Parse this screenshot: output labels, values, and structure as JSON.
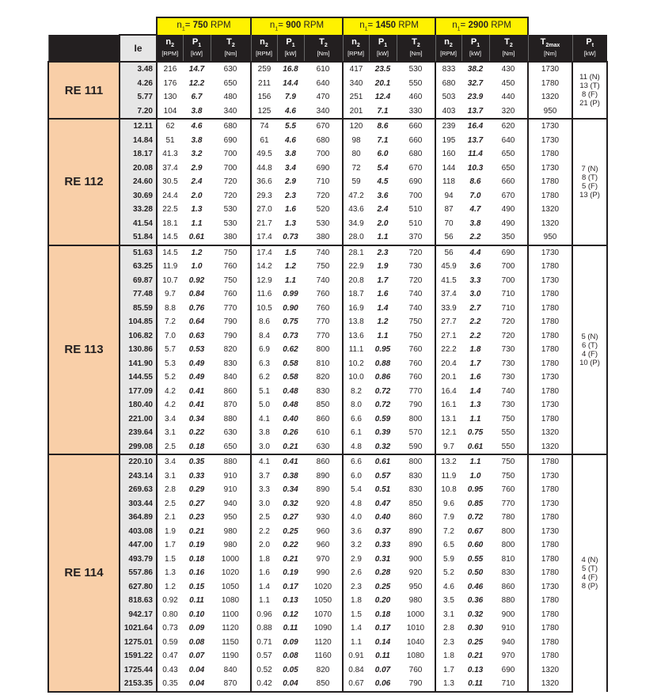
{
  "header": {
    "rpm_groups": [
      {
        "prefix": "n",
        "sub": "1",
        "eq": "= ",
        "value": "750",
        "unit": " RPM"
      },
      {
        "prefix": "n",
        "sub": "1",
        "eq": "= ",
        "value": "900",
        "unit": " RPM"
      },
      {
        "prefix": "n",
        "sub": "1",
        "eq": "= ",
        "value": "1450",
        "unit": " RPM"
      },
      {
        "prefix": "n",
        "sub": "1",
        "eq": "= ",
        "value": "2900",
        "unit": " RPM"
      }
    ],
    "ie_label": "Ie",
    "sub_columns": [
      {
        "symbol": "n",
        "sub": "2",
        "unit": "[RPM]"
      },
      {
        "symbol": "P",
        "sub": "1",
        "unit": "[kW]"
      },
      {
        "symbol": "T",
        "sub": "2",
        "unit": "[Nm]"
      }
    ],
    "t2max": {
      "symbol": "T",
      "sub": "2max",
      "unit": "[Nm]"
    },
    "pt": {
      "symbol": "P",
      "sub": "t",
      "unit": "[kW]"
    }
  },
  "colors": {
    "rpm_header": "#fff200",
    "column_header": "#231f20",
    "model_cell": "#f9cfa8",
    "ie_cell": "#e6e6e6"
  },
  "sections": [
    {
      "model": "RE 111",
      "pt": [
        "11 (N)",
        "13 (T)",
        "8 (F)",
        "21 (P)"
      ],
      "rows": [
        [
          "3.48",
          "216",
          "14.7",
          "630",
          "259",
          "16.8",
          "610",
          "417",
          "23.5",
          "530",
          "833",
          "38.2",
          "430",
          "1730"
        ],
        [
          "4.26",
          "176",
          "12.2",
          "650",
          "211",
          "14.4",
          "640",
          "340",
          "20.1",
          "550",
          "680",
          "32.7",
          "450",
          "1780"
        ],
        [
          "5.77",
          "130",
          "6.7",
          "480",
          "156",
          "7.9",
          "470",
          "251",
          "12.4",
          "460",
          "503",
          "23.9",
          "440",
          "1320"
        ],
        [
          "7.20",
          "104",
          "3.8",
          "340",
          "125",
          "4.6",
          "340",
          "201",
          "7.1",
          "330",
          "403",
          "13.7",
          "320",
          "950"
        ]
      ]
    },
    {
      "model": "RE 112",
      "pt": [
        "7 (N)",
        "8 (T)",
        "5 (F)",
        "13 (P)"
      ],
      "rows": [
        [
          "12.11",
          "62",
          "4.6",
          "680",
          "74",
          "5.5",
          "670",
          "120",
          "8.6",
          "660",
          "239",
          "16.4",
          "620",
          "1730"
        ],
        [
          "14.84",
          "51",
          "3.8",
          "690",
          "61",
          "4.6",
          "680",
          "98",
          "7.1",
          "660",
          "195",
          "13.7",
          "640",
          "1730"
        ],
        [
          "18.17",
          "41.3",
          "3.2",
          "700",
          "49.5",
          "3.8",
          "700",
          "80",
          "6.0",
          "680",
          "160",
          "11.4",
          "650",
          "1780"
        ],
        [
          "20.08",
          "37.4",
          "2.9",
          "700",
          "44.8",
          "3.4",
          "690",
          "72",
          "5.4",
          "670",
          "144",
          "10.3",
          "650",
          "1730"
        ],
        [
          "24.60",
          "30.5",
          "2.4",
          "720",
          "36.6",
          "2.9",
          "710",
          "59",
          "4.5",
          "690",
          "118",
          "8.6",
          "660",
          "1780"
        ],
        [
          "30.69",
          "24.4",
          "2.0",
          "720",
          "29.3",
          "2.3",
          "720",
          "47.2",
          "3.6",
          "700",
          "94",
          "7.0",
          "670",
          "1780"
        ],
        [
          "33.28",
          "22.5",
          "1.3",
          "530",
          "27.0",
          "1.6",
          "520",
          "43.6",
          "2.4",
          "510",
          "87",
          "4.7",
          "490",
          "1320"
        ],
        [
          "41.54",
          "18.1",
          "1.1",
          "530",
          "21.7",
          "1.3",
          "530",
          "34.9",
          "2.0",
          "510",
          "70",
          "3.8",
          "490",
          "1320"
        ],
        [
          "51.84",
          "14.5",
          "0.61",
          "380",
          "17.4",
          "0.73",
          "380",
          "28.0",
          "1.1",
          "370",
          "56",
          "2.2",
          "350",
          "950"
        ]
      ]
    },
    {
      "model": "RE 113",
      "pt": [
        "5 (N)",
        "6 (T)",
        "4 (F)",
        "10 (P)"
      ],
      "rows": [
        [
          "51.63",
          "14.5",
          "1.2",
          "750",
          "17.4",
          "1.5",
          "740",
          "28.1",
          "2.3",
          "720",
          "56",
          "4.4",
          "690",
          "1730"
        ],
        [
          "63.25",
          "11.9",
          "1.0",
          "760",
          "14.2",
          "1.2",
          "750",
          "22.9",
          "1.9",
          "730",
          "45.9",
          "3.6",
          "700",
          "1780"
        ],
        [
          "69.87",
          "10.7",
          "0.92",
          "750",
          "12.9",
          "1.1",
          "740",
          "20.8",
          "1.7",
          "720",
          "41.5",
          "3.3",
          "700",
          "1730"
        ],
        [
          "77.48",
          "9.7",
          "0.84",
          "760",
          "11.6",
          "0.99",
          "760",
          "18.7",
          "1.6",
          "740",
          "37.4",
          "3.0",
          "710",
          "1780"
        ],
        [
          "85.59",
          "8.8",
          "0.76",
          "770",
          "10.5",
          "0.90",
          "760",
          "16.9",
          "1.4",
          "740",
          "33.9",
          "2.7",
          "710",
          "1780"
        ],
        [
          "104.85",
          "7.2",
          "0.64",
          "790",
          "8.6",
          "0.75",
          "770",
          "13.8",
          "1.2",
          "750",
          "27.7",
          "2.2",
          "720",
          "1780"
        ],
        [
          "106.82",
          "7.0",
          "0.63",
          "790",
          "8.4",
          "0.73",
          "770",
          "13.6",
          "1.1",
          "750",
          "27.1",
          "2.2",
          "720",
          "1780"
        ],
        [
          "130.86",
          "5.7",
          "0.53",
          "820",
          "6.9",
          "0.62",
          "800",
          "11.1",
          "0.95",
          "760",
          "22.2",
          "1.8",
          "730",
          "1780"
        ],
        [
          "141.90",
          "5.3",
          "0.49",
          "830",
          "6.3",
          "0.58",
          "810",
          "10.2",
          "0.88",
          "760",
          "20.4",
          "1.7",
          "730",
          "1780"
        ],
        [
          "144.55",
          "5.2",
          "0.49",
          "840",
          "6.2",
          "0.58",
          "820",
          "10.0",
          "0.86",
          "760",
          "20.1",
          "1.6",
          "730",
          "1730"
        ],
        [
          "177.09",
          "4.2",
          "0.41",
          "860",
          "5.1",
          "0.48",
          "830",
          "8.2",
          "0.72",
          "770",
          "16.4",
          "1.4",
          "740",
          "1780"
        ],
        [
          "180.40",
          "4.2",
          "0.41",
          "870",
          "5.0",
          "0.48",
          "850",
          "8.0",
          "0.72",
          "790",
          "16.1",
          "1.3",
          "730",
          "1730"
        ],
        [
          "221.00",
          "3.4",
          "0.34",
          "880",
          "4.1",
          "0.40",
          "860",
          "6.6",
          "0.59",
          "800",
          "13.1",
          "1.1",
          "750",
          "1780"
        ],
        [
          "239.64",
          "3.1",
          "0.22",
          "630",
          "3.8",
          "0.26",
          "610",
          "6.1",
          "0.39",
          "570",
          "12.1",
          "0.75",
          "550",
          "1320"
        ],
        [
          "299.08",
          "2.5",
          "0.18",
          "650",
          "3.0",
          "0.21",
          "630",
          "4.8",
          "0.32",
          "590",
          "9.7",
          "0.61",
          "550",
          "1320"
        ]
      ]
    },
    {
      "model": "RE 114",
      "pt": [
        "4 (N)",
        "5 (T)",
        "4 (F)",
        "8 (P)"
      ],
      "rows": [
        [
          "220.10",
          "3.4",
          "0.35",
          "880",
          "4.1",
          "0.41",
          "860",
          "6.6",
          "0.61",
          "800",
          "13.2",
          "1.1",
          "750",
          "1780"
        ],
        [
          "243.14",
          "3.1",
          "0.33",
          "910",
          "3.7",
          "0.38",
          "890",
          "6.0",
          "0.57",
          "830",
          "11.9",
          "1.0",
          "750",
          "1730"
        ],
        [
          "269.63",
          "2.8",
          "0.29",
          "910",
          "3.3",
          "0.34",
          "890",
          "5.4",
          "0.51",
          "830",
          "10.8",
          "0.95",
          "760",
          "1780"
        ],
        [
          "303.44",
          "2.5",
          "0.27",
          "940",
          "3.0",
          "0.32",
          "920",
          "4.8",
          "0.47",
          "850",
          "9.6",
          "0.85",
          "770",
          "1730"
        ],
        [
          "364.89",
          "2.1",
          "0.23",
          "950",
          "2.5",
          "0.27",
          "930",
          "4.0",
          "0.40",
          "860",
          "7.9",
          "0.72",
          "780",
          "1780"
        ],
        [
          "403.08",
          "1.9",
          "0.21",
          "980",
          "2.2",
          "0.25",
          "960",
          "3.6",
          "0.37",
          "890",
          "7.2",
          "0.67",
          "800",
          "1730"
        ],
        [
          "447.00",
          "1.7",
          "0.19",
          "980",
          "2.0",
          "0.22",
          "960",
          "3.2",
          "0.33",
          "890",
          "6.5",
          "0.60",
          "800",
          "1780"
        ],
        [
          "493.79",
          "1.5",
          "0.18",
          "1000",
          "1.8",
          "0.21",
          "970",
          "2.9",
          "0.31",
          "900",
          "5.9",
          "0.55",
          "810",
          "1780"
        ],
        [
          "557.86",
          "1.3",
          "0.16",
          "1020",
          "1.6",
          "0.19",
          "990",
          "2.6",
          "0.28",
          "920",
          "5.2",
          "0.50",
          "830",
          "1780"
        ],
        [
          "627.80",
          "1.2",
          "0.15",
          "1050",
          "1.4",
          "0.17",
          "1020",
          "2.3",
          "0.25",
          "950",
          "4.6",
          "0.46",
          "860",
          "1730"
        ],
        [
          "818.63",
          "0.92",
          "0.11",
          "1080",
          "1.1",
          "0.13",
          "1050",
          "1.8",
          "0.20",
          "980",
          "3.5",
          "0.36",
          "880",
          "1780"
        ],
        [
          "942.17",
          "0.80",
          "0.10",
          "1100",
          "0.96",
          "0.12",
          "1070",
          "1.5",
          "0.18",
          "1000",
          "3.1",
          "0.32",
          "900",
          "1780"
        ],
        [
          "1021.64",
          "0.73",
          "0.09",
          "1120",
          "0.88",
          "0.11",
          "1090",
          "1.4",
          "0.17",
          "1010",
          "2.8",
          "0.30",
          "910",
          "1780"
        ],
        [
          "1275.01",
          "0.59",
          "0.08",
          "1150",
          "0.71",
          "0.09",
          "1120",
          "1.1",
          "0.14",
          "1040",
          "2.3",
          "0.25",
          "940",
          "1780"
        ],
        [
          "1591.22",
          "0.47",
          "0.07",
          "1190",
          "0.57",
          "0.08",
          "1160",
          "0.91",
          "0.11",
          "1080",
          "1.8",
          "0.21",
          "970",
          "1780"
        ],
        [
          "1725.44",
          "0.43",
          "0.04",
          "840",
          "0.52",
          "0.05",
          "820",
          "0.84",
          "0.07",
          "760",
          "1.7",
          "0.13",
          "690",
          "1320"
        ],
        [
          "2153.35",
          "0.35",
          "0.04",
          "870",
          "0.42",
          "0.04",
          "850",
          "0.67",
          "0.06",
          "790",
          "1.3",
          "0.11",
          "710",
          "1320"
        ]
      ]
    }
  ]
}
